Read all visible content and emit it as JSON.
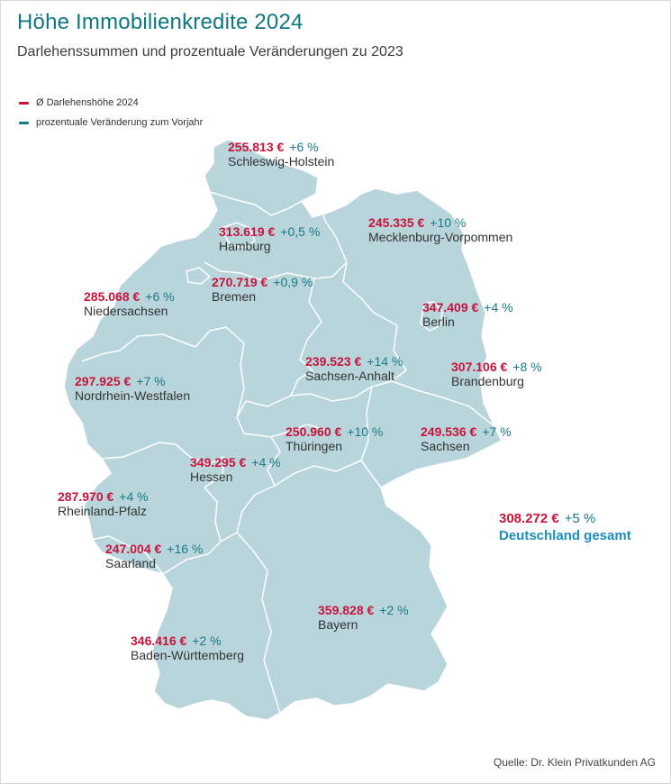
{
  "header": {
    "title": "Höhe Immobilienkredite 2024",
    "subtitle": "Darlehenssummen und prozentuale Veränderungen zu 2023"
  },
  "legend": {
    "amount_label": "Ø Darlehenshöhe 2024",
    "change_label": "prozentuale Veränderung zum Vorjahr"
  },
  "colors": {
    "map_fill": "#b8d5dc",
    "border": "#ffffff",
    "amount": "#c8143c",
    "change": "#1b7a86",
    "title": "#0f7783",
    "total_label": "#1a8fbf"
  },
  "states": [
    {
      "name": "Schleswig-Holstein",
      "amount": "255.813 €",
      "change": "+6 %"
    },
    {
      "name": "Hamburg",
      "amount": "313.619 €",
      "change": "+0,5 %"
    },
    {
      "name": "Mecklenburg-Vorpommen",
      "amount": "245.335 €",
      "change": "+10 %"
    },
    {
      "name": "Bremen",
      "amount": "270.719 €",
      "change": "+0,9 %"
    },
    {
      "name": "Niedersachsen",
      "amount": "285.068 €",
      "change": "+6 %"
    },
    {
      "name": "Berlin",
      "amount": "347.409 €",
      "change": "+4 %"
    },
    {
      "name": "Sachsen-Anhalt",
      "amount": "239.523 €",
      "change": "+14 %"
    },
    {
      "name": "Brandenburg",
      "amount": "307.106 €",
      "change": "+8 %"
    },
    {
      "name": "Nordrhein-Westfalen",
      "amount": "297.925 €",
      "change": "+7 %"
    },
    {
      "name": "Thüringen",
      "amount": "250.960 €",
      "change": "+10 %"
    },
    {
      "name": "Sachsen",
      "amount": "249.536 €",
      "change": "+7 %"
    },
    {
      "name": "Hessen",
      "amount": "349.295 €",
      "change": "+4 %"
    },
    {
      "name": "Rheinland-Pfalz",
      "amount": "287.970 €",
      "change": "+4 %"
    },
    {
      "name": "Saarland",
      "amount": "247.004 €",
      "change": "+16 %"
    },
    {
      "name": "Bayern",
      "amount": "359.828 €",
      "change": "+2 %"
    },
    {
      "name": "Baden-Württemberg",
      "amount": "346.416 €",
      "change": "+2 %"
    }
  ],
  "total": {
    "amount": "308.272 €",
    "change": "+5 %",
    "label": "Deutschland gesamt"
  },
  "source": "Quelle: Dr. Klein Privatkunden AG"
}
